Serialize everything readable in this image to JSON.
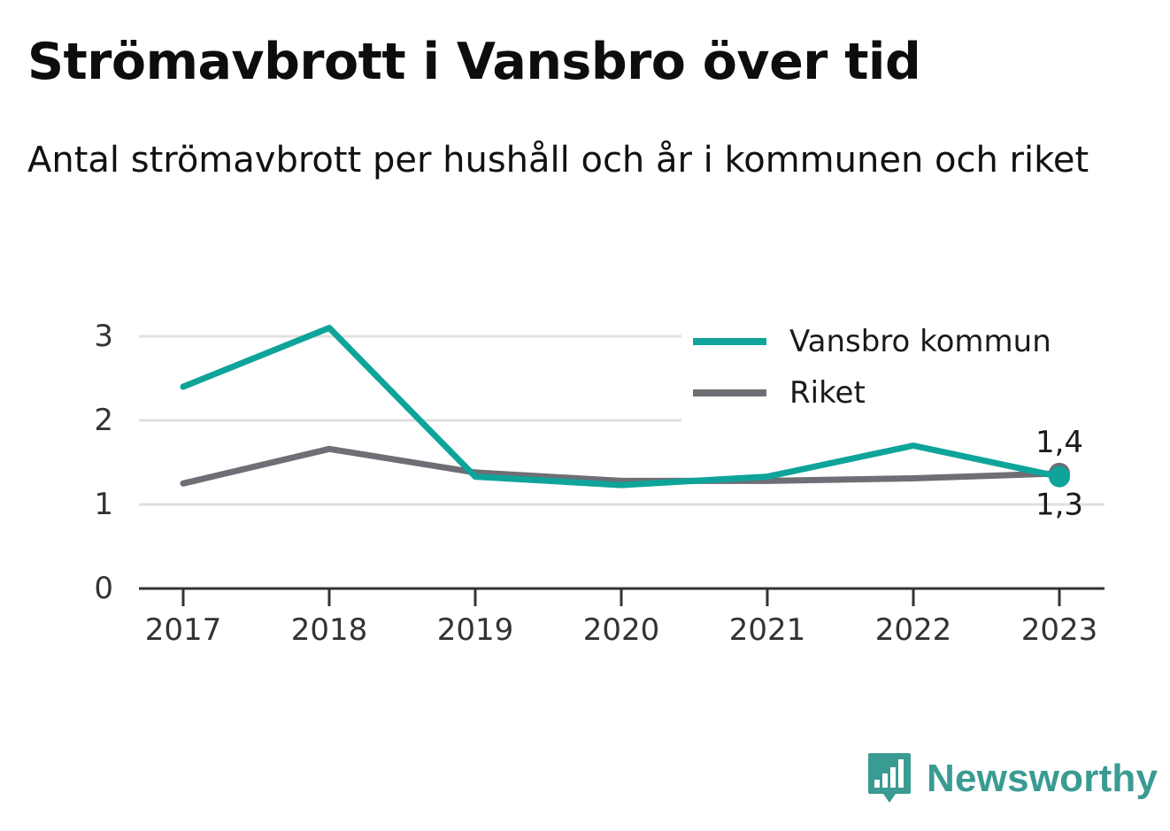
{
  "header": {
    "title": "Strömavbrott i Vansbro över tid",
    "subtitle": "Antal strömavbrott per hushåll och år i kommunen och riket"
  },
  "brand": {
    "name": "Newsworthy",
    "icon": "bar-chart-speech-bubble-icon",
    "color": "#3a9b92"
  },
  "chart_data": {
    "type": "line",
    "x": [
      "2017",
      "2018",
      "2019",
      "2020",
      "2021",
      "2022",
      "2023"
    ],
    "ylim": [
      0,
      3
    ],
    "yticks": [
      "0",
      "1",
      "2",
      "3"
    ],
    "grid": true,
    "legend_position": "top-right",
    "series": [
      {
        "name": "Vansbro kommun",
        "color": "#0ea49a",
        "values": [
          2.4,
          3.1,
          1.33,
          1.23,
          1.33,
          1.7,
          1.33
        ],
        "end_label": "1,3"
      },
      {
        "name": "Riket",
        "color": "#6e6e75",
        "values": [
          1.25,
          1.66,
          1.38,
          1.28,
          1.28,
          1.31,
          1.37
        ],
        "end_label": "1,4"
      }
    ]
  }
}
